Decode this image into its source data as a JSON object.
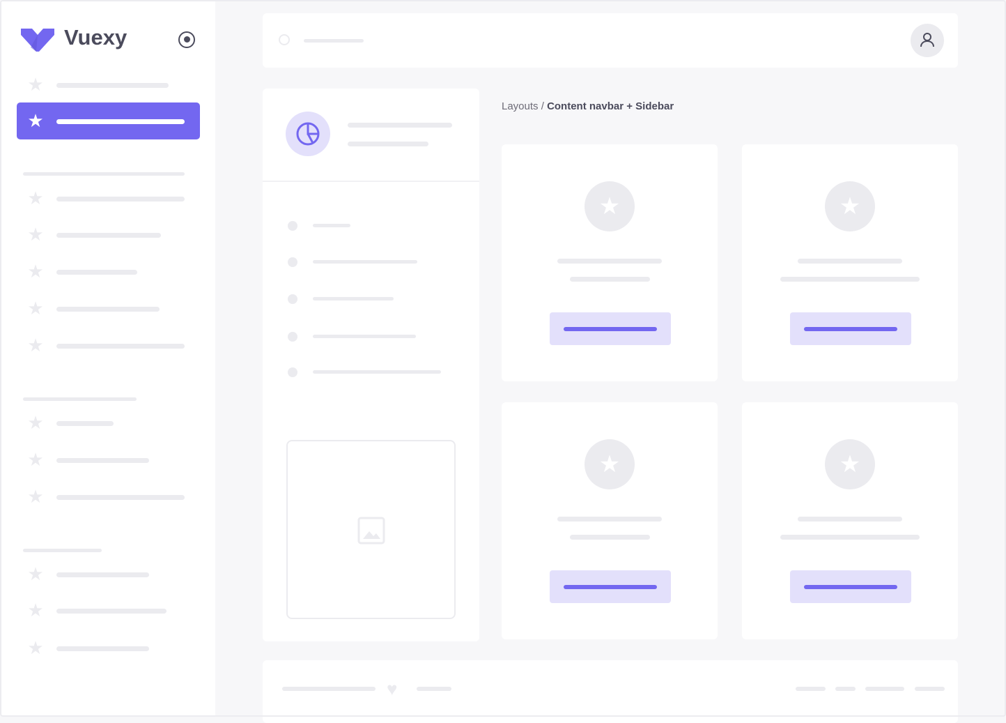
{
  "brand": {
    "name": "Vuexy",
    "color": "#7367f0"
  },
  "sidebar": {
    "toggle_icon": "radio-circle-icon",
    "item_icon": "star-icon",
    "active_index": 1
  },
  "breadcrumb": {
    "parent": "Layouts",
    "separator": " / ",
    "current": "Content navbar + Sidebar"
  },
  "navbar": {
    "search_icon": "search-icon",
    "avatar_icon": "user-icon"
  },
  "panel": {
    "icon": "pie-chart-icon",
    "image_icon": "image-icon"
  },
  "footer": {
    "icon": "heart-icon"
  },
  "colors": {
    "accent": "#7367f0",
    "accent_light": "#e3e0fb",
    "placeholder": "#ebebef",
    "background": "#f7f7f9"
  }
}
